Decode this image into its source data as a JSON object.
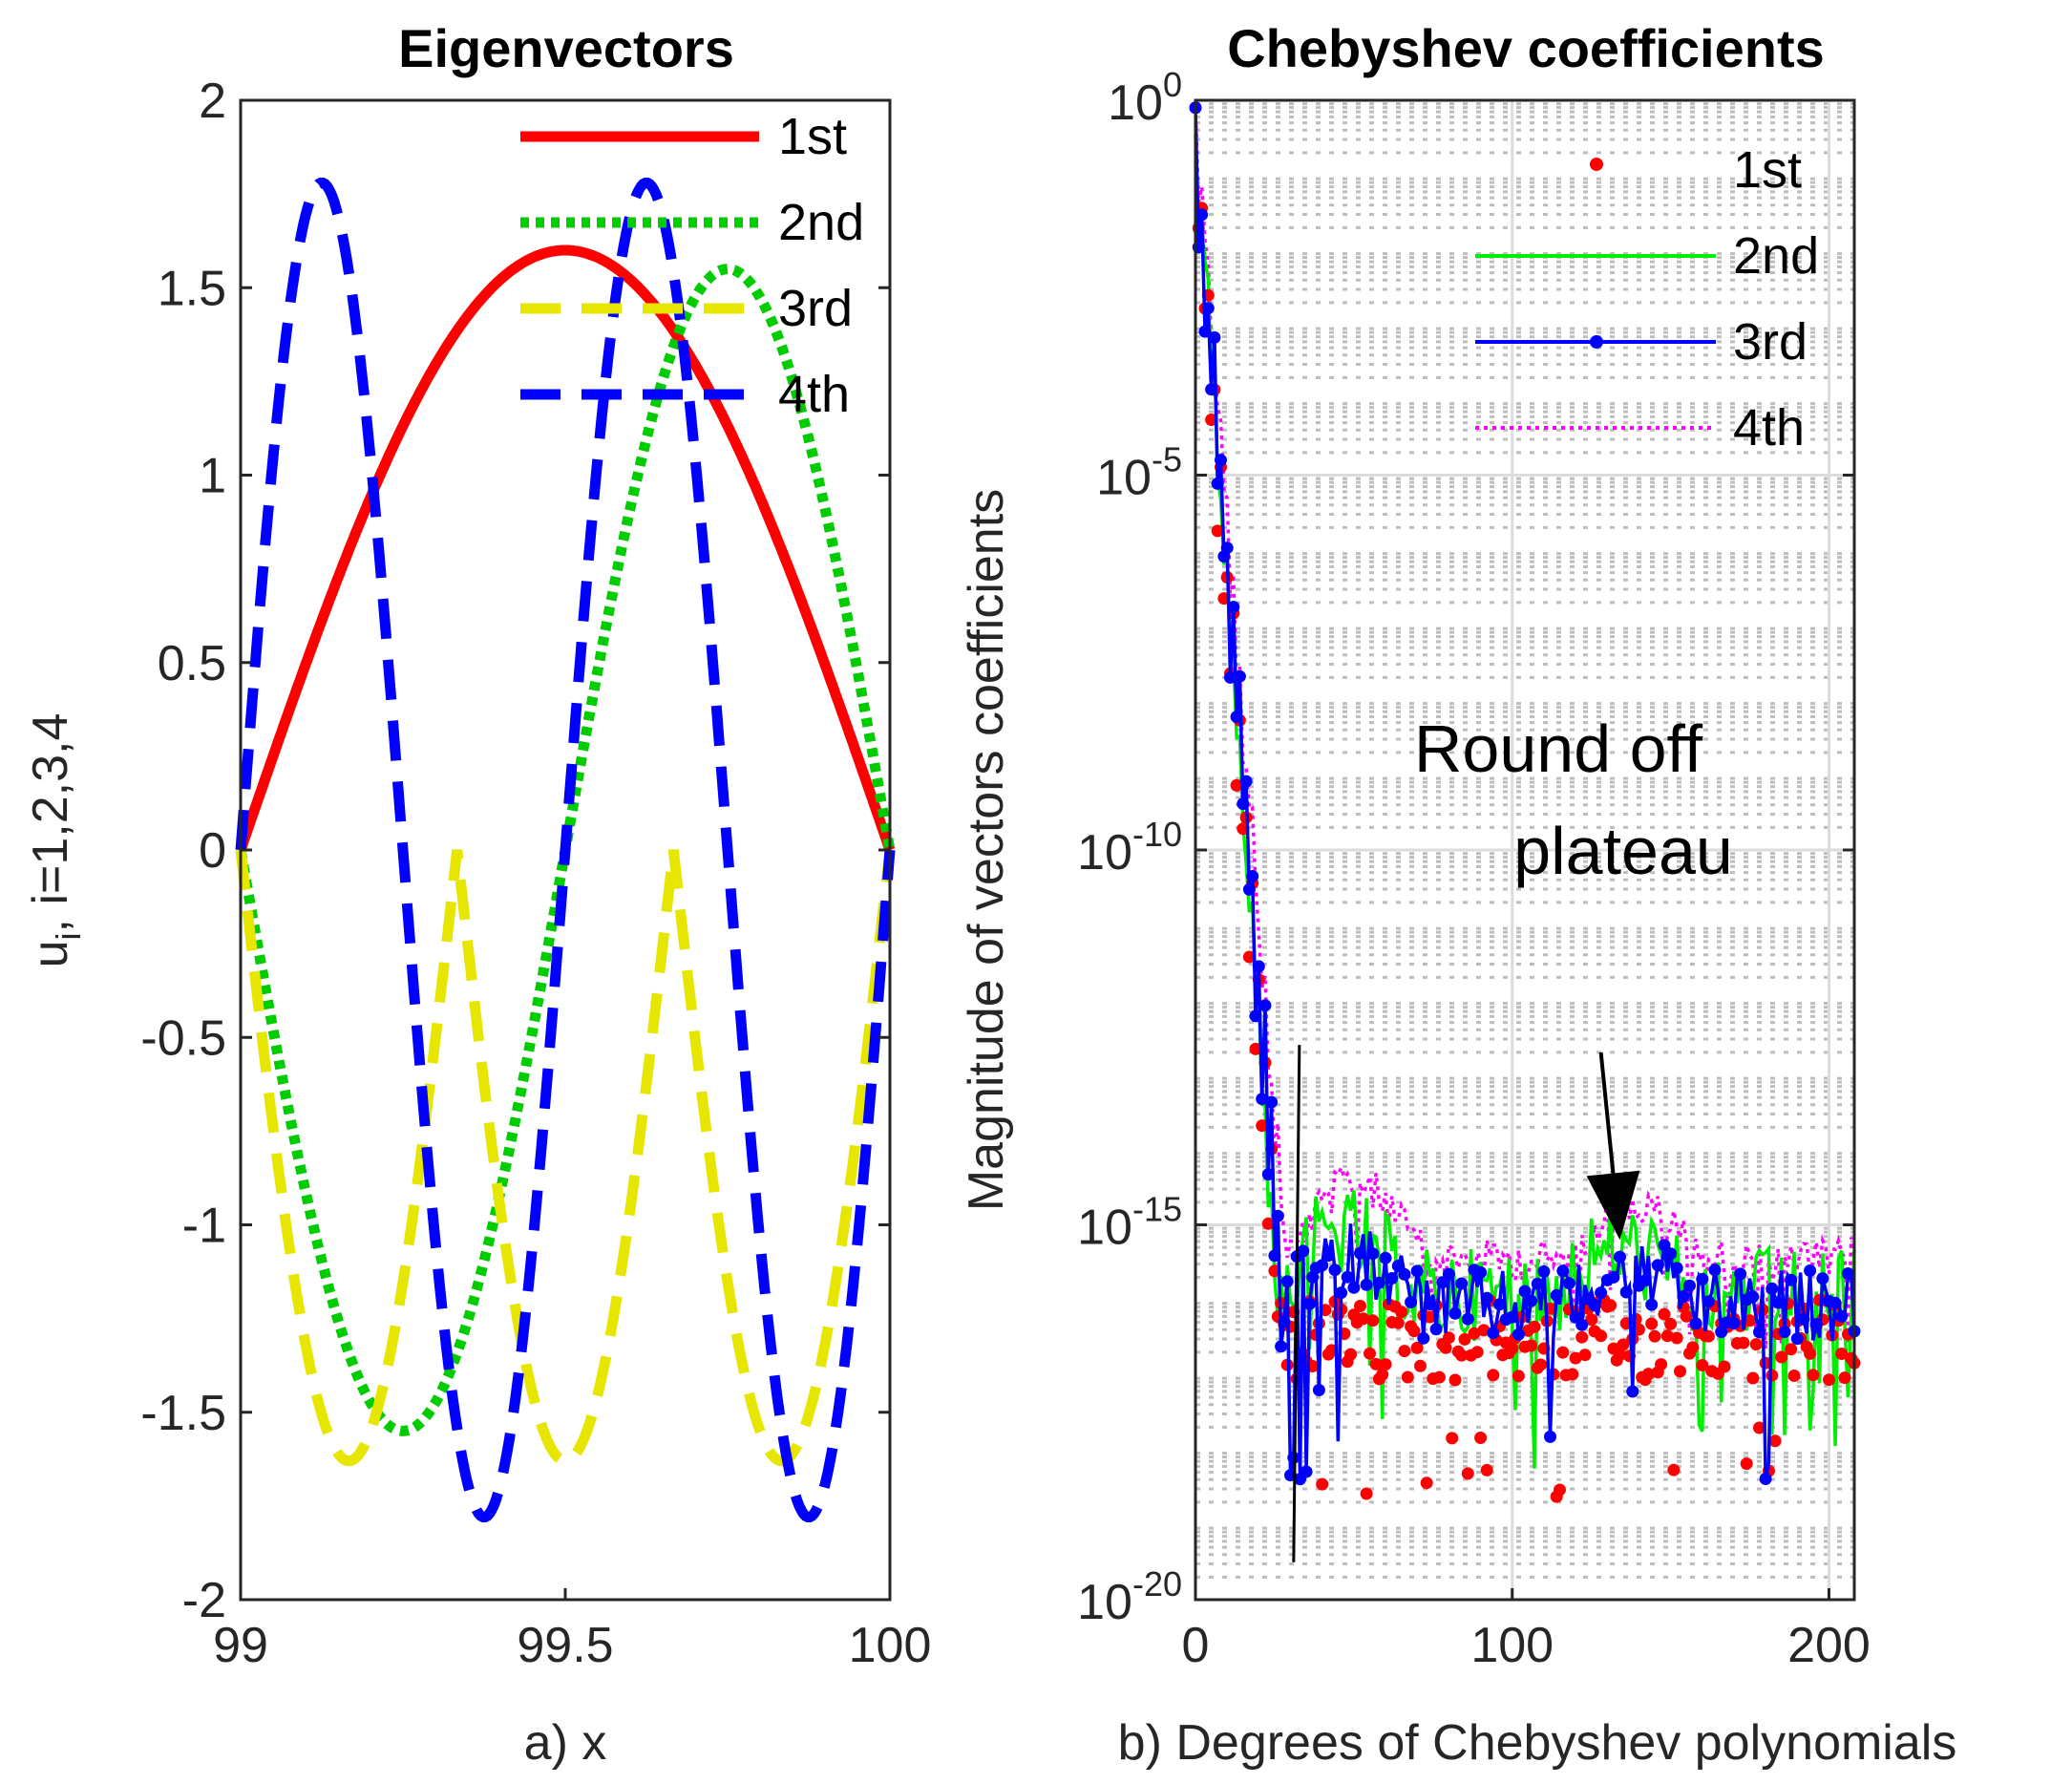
{
  "chart_data": [
    {
      "type": "line",
      "panel": "a",
      "title": "Eigenvectors",
      "xlabel": "a) x",
      "ylabel": "u_i, i=1,2,3,4",
      "ylabel_main": "u",
      "ylabel_sub": "i",
      "ylabel_rest": ", i=1,2,3,4",
      "xlim": [
        99,
        100
      ],
      "ylim": [
        -2,
        2
      ],
      "xticks": [
        99,
        99.5,
        100
      ],
      "xtick_labels": [
        "99",
        "99.5",
        "100"
      ],
      "yticks": [
        -2,
        -1.5,
        -1,
        -0.5,
        0,
        0.5,
        1,
        1.5,
        2
      ],
      "ytick_labels": [
        "-2",
        "-1.5",
        "-1",
        "-0.5",
        "0",
        "0.5",
        "1",
        "1.5",
        "2"
      ],
      "grid": false,
      "legend_position": "top-right",
      "series": [
        {
          "name": "1st",
          "label": "1st",
          "color": "#ff0000",
          "style": "solid",
          "function": "sqrt2*sin(1*pi*(x-99))",
          "amplitude": 1.6,
          "mode": 1,
          "x": [
            99,
            99.1,
            99.2,
            99.3,
            99.4,
            99.5,
            99.6,
            99.7,
            99.8,
            99.9,
            100
          ],
          "y": [
            0,
            0.15,
            0.55,
            1.0,
            1.45,
            1.63,
            1.45,
            1.0,
            0.55,
            0.15,
            0
          ]
        },
        {
          "name": "2nd",
          "label": "2nd",
          "color": "#00cc00",
          "style": "dotted",
          "amplitude": 1.55,
          "mode": 2,
          "x": [
            99,
            99.15,
            99.3,
            99.45,
            99.5,
            99.55,
            99.7,
            99.85,
            100
          ],
          "y": [
            0,
            -1.0,
            -1.55,
            -0.5,
            0,
            0.5,
            1.53,
            1.0,
            0
          ]
        },
        {
          "name": "3rd",
          "label": "3rd",
          "color": "#e6e600",
          "style": "dashed",
          "amplitude": 1.63,
          "mode": 3,
          "x": [
            99,
            99.12,
            99.25,
            99.38,
            99.5,
            99.62,
            99.75,
            99.88,
            100
          ],
          "y": [
            0,
            -1.0,
            -1.63,
            -1.0,
            0,
            -1.0,
            -1.63,
            -1.0,
            0
          ]
        },
        {
          "name": "4th",
          "label": "4th",
          "color": "#0000ff",
          "style": "dashed",
          "amplitude": 1.78,
          "mode": 4,
          "x": [
            99,
            99.1,
            99.2,
            99.3,
            99.4,
            99.5,
            99.6,
            99.7,
            99.8,
            99.9,
            100
          ],
          "y": [
            0,
            1.3,
            1.78,
            0.4,
            -0.85,
            0,
            0.88,
            -0.5,
            -1.78,
            -1.0,
            0
          ]
        }
      ]
    },
    {
      "type": "scatter",
      "panel": "b",
      "title": "Chebyshev coefficients",
      "xlabel": "b) Degrees of Chebyshev polynomials",
      "ylabel": "Magnitude of vectors coefficients",
      "yscale": "log",
      "xlim": [
        0,
        208
      ],
      "ylim": [
        1e-20,
        1
      ],
      "xticks": [
        0,
        100,
        200
      ],
      "xtick_labels": [
        "0",
        "100",
        "200"
      ],
      "yticks_exp": [
        0,
        -5,
        -10,
        -15,
        -20
      ],
      "ytick_base": "10",
      "ytick_exponents": [
        "0",
        "-5",
        "-10",
        "-15",
        "-20"
      ],
      "grid": true,
      "legend_position": "top-right",
      "annotation": {
        "line1": "Round off",
        "line2": "plateau",
        "arrow_from": [
          128,
          -12.7
        ],
        "arrow_to": [
          134,
          -15.2
        ]
      },
      "vertical_marker_x": 31,
      "vertical_marker_ylim_exp": [
        -19.5,
        -12.6
      ],
      "series": [
        {
          "name": "1st",
          "label": "1st",
          "color": "#ff0000",
          "style": "dots",
          "plateau_exp": -16.0,
          "decay_per_degree": -0.58,
          "knee": 26,
          "noise_depth": 2.2,
          "spike_depth": 2.7
        },
        {
          "name": "2nd",
          "label": "2nd",
          "color": "#00ee00",
          "style": "solid",
          "plateau_exp": -15.3,
          "decay_per_degree": -0.6,
          "knee": 25,
          "hump_exp": -14.4,
          "noise_depth": 2.5,
          "spike_depth": 3.0
        },
        {
          "name": "3rd",
          "label": "3rd",
          "color": "#0000ff",
          "style": "solid-with-dots",
          "plateau_exp": -15.6,
          "decay_per_degree": -0.55,
          "knee": 28,
          "hump_exp": -14.9,
          "noise_depth": 1.9,
          "spike_depth": 3.1
        },
        {
          "name": "4th",
          "label": "4th",
          "color": "#ff00ff",
          "style": "dotted",
          "plateau_exp": -15.2,
          "decay_per_degree": -0.53,
          "knee": 29,
          "hump_exp": -14.1,
          "noise_depth": 1.1,
          "spike_depth": 1.5
        }
      ]
    }
  ]
}
